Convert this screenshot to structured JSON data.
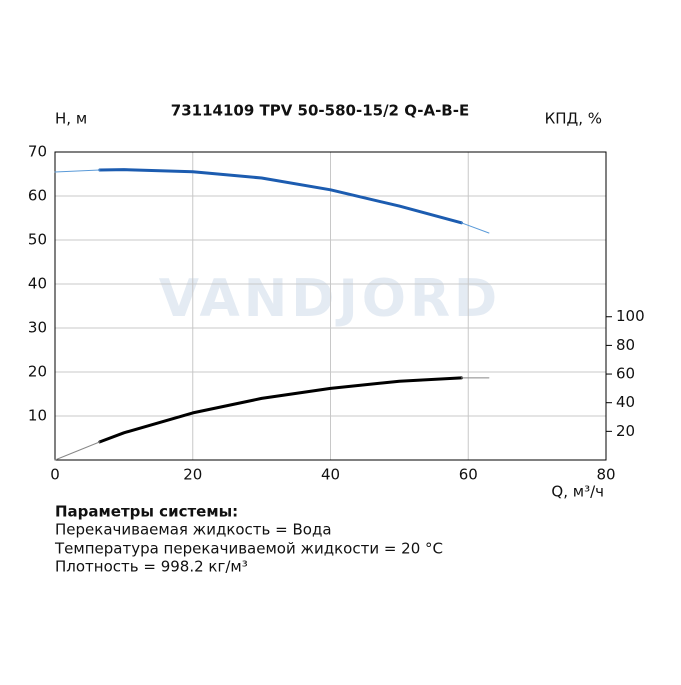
{
  "chart_data": {
    "type": "line",
    "title": "73114109 TPV 50-580-15/2 Q-A-B-E",
    "y_label": "Н, м",
    "y2_label": "КПД, %",
    "x_label": "Q, м³/ч",
    "watermark": "VANDJORD",
    "xlim": [
      0,
      80
    ],
    "xticks": [
      0,
      20,
      40,
      60,
      80
    ],
    "ylim": [
      0,
      70
    ],
    "yticks": [
      10,
      20,
      30,
      40,
      50,
      60,
      70
    ],
    "y2lim": [
      0,
      215
    ],
    "y2ticks": [
      20,
      40,
      60,
      80,
      100
    ],
    "grid": true,
    "series": [
      {
        "color": "#1c5cb0",
        "line_width": 3,
        "x": [
          6.5,
          10,
          20,
          30,
          40,
          50,
          59
        ],
        "values": [
          65.9,
          66,
          65.5,
          64.1,
          61.4,
          57.7,
          53.9
        ]
      },
      {
        "color": "#5a9ad8",
        "line_width": 1,
        "x": [
          0,
          6.5,
          null,
          59,
          63
        ],
        "values": [
          65.45,
          65.9,
          null,
          53.9,
          51.6
        ]
      },
      {
        "color": "#000000",
        "line_width": 3,
        "axis": "y2",
        "x": [
          6.5,
          10,
          20,
          30,
          40,
          50,
          59
        ],
        "values": [
          12.6,
          19,
          32.9,
          43,
          50,
          55,
          57.3
        ]
      },
      {
        "color": "#888888",
        "line_width": 1,
        "axis": "y2",
        "x": [
          0,
          6.5,
          null,
          59,
          63
        ],
        "values": [
          0,
          12.6,
          null,
          57.3,
          57.3
        ]
      }
    ]
  },
  "system": {
    "heading": "Параметры системы:",
    "lines": [
      "Перекачиваемая жидкость = Вода",
      "Температура перекачиваемой жидкости = 20 °C",
      "Плотность = 998.2 кг/м³"
    ]
  }
}
